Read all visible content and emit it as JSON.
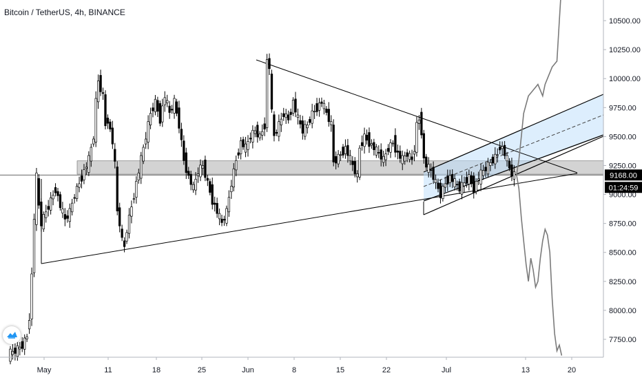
{
  "header": {
    "title": "Bitcoin / TetherUS, 4h, BINANCE"
  },
  "badges": {
    "price": "9168.00",
    "countdown": "01:24:59"
  },
  "chart_data": {
    "type": "candlestick",
    "symbol": "Bitcoin / TetherUS",
    "interval": "4h",
    "exchange": "BINANCE",
    "y_ticks": [
      "10500.00",
      "10250.00",
      "10000.00",
      "9750.00",
      "9500.00",
      "9250.00",
      "9000.00",
      "8750.00",
      "8500.00",
      "8250.00",
      "8000.00",
      "7750.00"
    ],
    "ylim": [
      7610,
      10830
    ],
    "x_ticks": [
      "May",
      "11",
      "18",
      "25",
      "Jun",
      "8",
      "15",
      "22",
      "Jul",
      "13",
      "20"
    ],
    "current_price": 9168.0,
    "price_path": [
      [
        0,
        7620
      ],
      [
        3,
        7650
      ],
      [
        6,
        7700
      ],
      [
        8,
        7780
      ],
      [
        9,
        7950
      ],
      [
        10,
        8300
      ],
      [
        11,
        8800
      ],
      [
        12,
        9150
      ],
      [
        13,
        8900
      ],
      [
        14,
        8750
      ],
      [
        16,
        8850
      ],
      [
        18,
        8950
      ],
      [
        20,
        9050
      ],
      [
        22,
        8900
      ],
      [
        24,
        8780
      ],
      [
        26,
        8850
      ],
      [
        28,
        9000
      ],
      [
        30,
        9100
      ],
      [
        32,
        9200
      ],
      [
        34,
        9300
      ],
      [
        36,
        9500
      ],
      [
        37,
        9800
      ],
      [
        38,
        9980
      ],
      [
        40,
        9850
      ],
      [
        41,
        9600
      ],
      [
        42,
        9650
      ],
      [
        44,
        9450
      ],
      [
        45,
        9250
      ],
      [
        46,
        8850
      ],
      [
        47,
        8750
      ],
      [
        48,
        8600
      ],
      [
        49,
        8550
      ],
      [
        50,
        8700
      ],
      [
        52,
        8900
      ],
      [
        54,
        9100
      ],
      [
        56,
        9300
      ],
      [
        58,
        9500
      ],
      [
        60,
        9700
      ],
      [
        62,
        9800
      ],
      [
        64,
        9650
      ],
      [
        66,
        9850
      ],
      [
        68,
        9700
      ],
      [
        70,
        9800
      ],
      [
        72,
        9600
      ],
      [
        74,
        9300
      ],
      [
        76,
        9150
      ],
      [
        78,
        9050
      ],
      [
        80,
        9200
      ],
      [
        82,
        9250
      ],
      [
        84,
        9100
      ],
      [
        86,
        8950
      ],
      [
        88,
        8850
      ],
      [
        90,
        8750
      ],
      [
        92,
        8850
      ],
      [
        94,
        9100
      ],
      [
        96,
        9300
      ],
      [
        98,
        9450
      ],
      [
        100,
        9400
      ],
      [
        102,
        9500
      ],
      [
        104,
        9550
      ],
      [
        106,
        9500
      ],
      [
        108,
        9600
      ],
      [
        109,
        10150
      ],
      [
        110,
        10100
      ],
      [
        111,
        9700
      ],
      [
        112,
        9500
      ],
      [
        114,
        9600
      ],
      [
        116,
        9700
      ],
      [
        118,
        9650
      ],
      [
        120,
        9800
      ],
      [
        122,
        9650
      ],
      [
        124,
        9550
      ],
      [
        126,
        9600
      ],
      [
        128,
        9700
      ],
      [
        130,
        9750
      ],
      [
        132,
        9800
      ],
      [
        134,
        9700
      ],
      [
        136,
        9600
      ],
      [
        137,
        9280
      ],
      [
        138,
        9300
      ],
      [
        140,
        9350
      ],
      [
        142,
        9400
      ],
      [
        144,
        9300
      ],
      [
        146,
        9200
      ],
      [
        147,
        9150
      ],
      [
        148,
        9400
      ],
      [
        150,
        9500
      ],
      [
        152,
        9450
      ],
      [
        154,
        9400
      ],
      [
        156,
        9350
      ],
      [
        158,
        9300
      ],
      [
        160,
        9400
      ],
      [
        162,
        9450
      ],
      [
        164,
        9350
      ],
      [
        166,
        9300
      ],
      [
        168,
        9350
      ],
      [
        170,
        9300
      ],
      [
        171,
        9400
      ],
      [
        172,
        9600
      ],
      [
        173,
        9650
      ],
      [
        174,
        9550
      ],
      [
        175,
        9300
      ],
      [
        176,
        9250
      ],
      [
        178,
        9200
      ],
      [
        180,
        9100
      ],
      [
        181,
        9050
      ],
      [
        182,
        9000
      ],
      [
        183,
        9050
      ],
      [
        184,
        9100
      ],
      [
        186,
        9150
      ],
      [
        188,
        9100
      ],
      [
        190,
        9050
      ],
      [
        192,
        9100
      ],
      [
        194,
        9150
      ],
      [
        196,
        9050
      ],
      [
        198,
        9150
      ],
      [
        200,
        9200
      ],
      [
        202,
        9250
      ],
      [
        204,
        9300
      ],
      [
        206,
        9350
      ],
      [
        207,
        9420
      ],
      [
        208,
        9400
      ],
      [
        210,
        9300
      ],
      [
        211,
        9220
      ],
      [
        212,
        9180
      ],
      [
        213,
        9168
      ]
    ],
    "projection_path": [
      [
        213,
        9168
      ],
      [
        214,
        9300
      ],
      [
        215,
        9500
      ],
      [
        216,
        9700
      ],
      [
        218,
        9850
      ],
      [
        220,
        9900
      ],
      [
        222,
        9950
      ],
      [
        224,
        9850
      ],
      [
        225,
        9950
      ],
      [
        226,
        10000
      ],
      [
        228,
        10100
      ],
      [
        230,
        10150
      ],
      [
        231,
        10500
      ],
      [
        232,
        10830
      ]
    ],
    "projection_path_2": [
      [
        213,
        9168
      ],
      [
        214,
        9050
      ],
      [
        215,
        8800
      ],
      [
        216,
        8600
      ],
      [
        217,
        8400
      ],
      [
        218,
        8250
      ],
      [
        219,
        8450
      ],
      [
        220,
        8350
      ],
      [
        221,
        8200
      ],
      [
        222,
        8250
      ],
      [
        223,
        8450
      ],
      [
        224,
        8600
      ],
      [
        225,
        8700
      ],
      [
        226,
        8650
      ],
      [
        227,
        8500
      ],
      [
        228,
        8100
      ],
      [
        229,
        7800
      ],
      [
        230,
        7650
      ],
      [
        231,
        7700
      ],
      [
        232,
        7610
      ]
    ],
    "resistance_zone": [
      9175,
      9290
    ],
    "horizontal_line": 9168.0
  }
}
